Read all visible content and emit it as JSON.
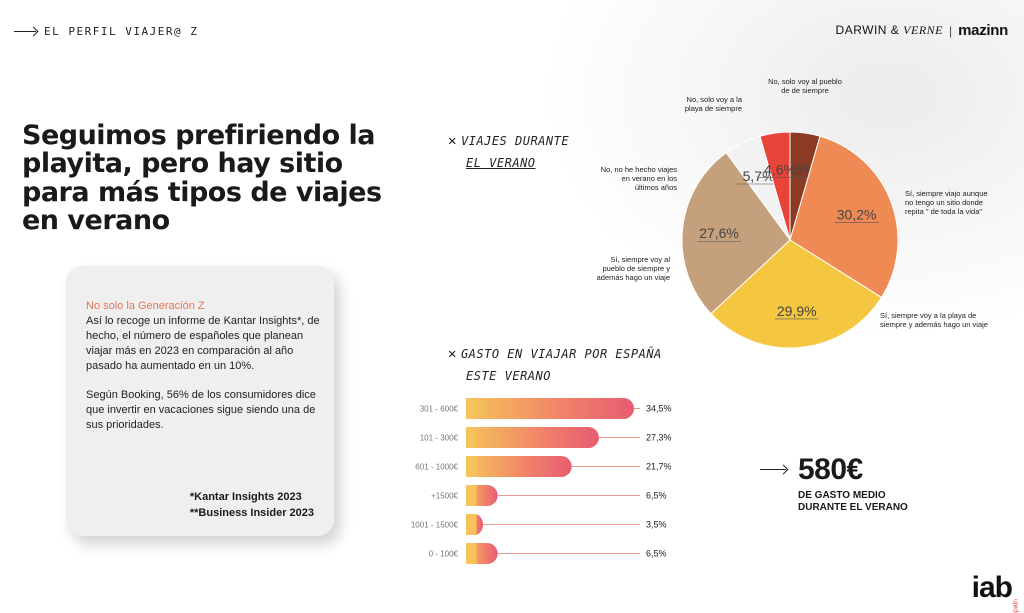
{
  "header": {
    "section_label": "EL PERFIL VIAJER@ Z",
    "brand_left": "DARWIN &",
    "brand_left_italic": "VERNE",
    "brand_sep": "|",
    "brand_right": "mazinn"
  },
  "headline": "Seguimos prefiriendo la playita, pero hay sitio para más tipos de viajes en verano",
  "card": {
    "title": "No solo la Generación Z",
    "paragraph1": "Así lo recoge un informe de Kantar Insights*, de hecho, el número de españoles que planean viajar más en 2023 en comparación al año pasado ha aumentado en un 10%.",
    "paragraph2": "Según Booking, 56% de los consumidores dice que invertir en vacaciones sigue siendo una de sus prioridades.",
    "source1": "*Kantar Insights 2023",
    "source2": "**Business Insider 2023"
  },
  "pie_title": {
    "x": "✕",
    "line1": "VIAJES DURANTE",
    "line2": "EL VERANO"
  },
  "bar_title": {
    "x": "✕",
    "line1": "GASTO EN VIAJAR POR ESPAÑA",
    "line2": "ESTE VERANO"
  },
  "stat": {
    "value": "580€",
    "label": "DE GASTO MEDIO DURANTE EL VERANO"
  },
  "logo": {
    "text": "iab",
    "sub": "spain"
  },
  "chart_data": [
    {
      "type": "pie",
      "title": "VIAJES DURANTE EL VERANO",
      "slices": [
        {
          "label": "No, solo voy al pueblo de de siempre",
          "value": 4.6,
          "display": "4,6%",
          "color": "#8b3a24"
        },
        {
          "label": "Sí, siempre viajo aunque no tengo un sitio donde repita \" de toda la vida\"",
          "value": 30.2,
          "display": "30,2%",
          "color": "#f08a55"
        },
        {
          "label": "Sí, siempre voy a la playa de siempre y además hago un viaje",
          "value": 29.9,
          "display": "29,9%",
          "color": "#f5c640"
        },
        {
          "label": "Sí, siempre voy al pueblo de siempre y además hago un viaje",
          "value": 27.6,
          "display": "27,6%",
          "color": "#c4a07c"
        },
        {
          "label": "No, no he hecho viajes en verano en los últimos años",
          "value": 5.7,
          "display": "5,7%",
          "color": "#f2f2f2"
        },
        {
          "label": "No, solo voy a la playa de siempre",
          "value": 4.6,
          "display": "4,6%",
          "color": "#e8443a"
        }
      ]
    },
    {
      "type": "bar",
      "title": "GASTO EN VIAJAR POR ESPAÑA ESTE VERANO",
      "categories": [
        "301 - 600€",
        "101 - 300€",
        "601 - 1000€",
        "+1500€",
        "1001 - 1500€",
        "0 - 100€"
      ],
      "values": [
        34.5,
        27.3,
        21.7,
        6.5,
        3.5,
        6.5
      ],
      "display": [
        "34,5%",
        "27,3%",
        "21,7%",
        "6,5%",
        "3,5%",
        "6,5%"
      ]
    }
  ]
}
